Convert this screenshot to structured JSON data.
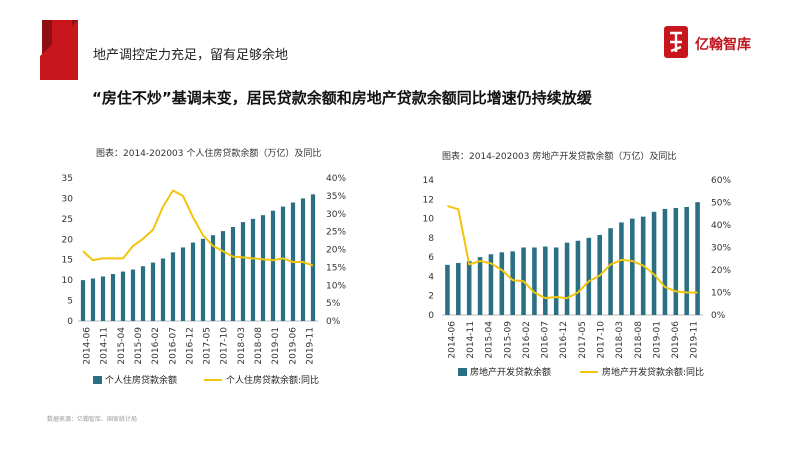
{
  "header": {
    "section_title": "地产调控定力充足，留有足够余地",
    "logo_text": "亿翰智库",
    "brand_color": "#c8161d"
  },
  "headline": "“房住不炒”基调未变，居民贷款余额和房地产贷款余额同比增速仍持续放缓",
  "source": "数据来源：亿翰智库、国家统计局",
  "colors": {
    "bar": "#2a6f84",
    "line": "#f2c40c",
    "axis": "#bbbbbb"
  },
  "chart_data": [
    {
      "type": "bar+line",
      "title": "图表：2014-202003 个人住房贷款余额（万亿）及同比",
      "x_tick_labels": [
        "2014-06",
        "2014-11",
        "2015-04",
        "2015-09",
        "2016-02",
        "2016-07",
        "2016-12",
        "2017-05",
        "2017-10",
        "2018-03",
        "2018-08",
        "2019-01",
        "2019-06",
        "2019-11"
      ],
      "y_left": {
        "ylim": [
          0,
          35
        ],
        "ticks": [
          "0",
          "5",
          "10",
          "15",
          "20",
          "25",
          "30",
          "35"
        ]
      },
      "y_right": {
        "ylim": [
          0,
          40
        ],
        "ticks": [
          "0%",
          "5%",
          "10%",
          "15%",
          "20%",
          "25%",
          "30%",
          "35%",
          "40%"
        ]
      },
      "series": [
        {
          "name": "个人住房贷款余额",
          "kind": "bar",
          "axis": "left",
          "values": [
            10.0,
            10.4,
            10.9,
            11.5,
            12.1,
            12.6,
            13.4,
            14.3,
            15.3,
            16.8,
            18.0,
            19.2,
            20.1,
            21.0,
            22.0,
            23.0,
            24.2,
            25.0,
            25.9,
            27.0,
            28.0,
            29.0,
            30.0,
            31.0
          ]
        },
        {
          "name": "个人住房贷款余额:同比",
          "kind": "line",
          "axis": "right",
          "values": [
            19.5,
            17.0,
            17.5,
            17.5,
            17.5,
            21.0,
            23.0,
            25.5,
            32.0,
            36.5,
            35.0,
            29.0,
            24.0,
            21.0,
            19.5,
            18.0,
            17.8,
            17.5,
            17.3,
            17.0,
            17.5,
            16.5,
            16.5,
            15.5
          ]
        }
      ]
    },
    {
      "type": "bar+line",
      "title": "图表：2014-202003 房地产开发贷款余额（万亿）及同比",
      "x_tick_labels": [
        "2014-06",
        "2014-11",
        "2015-04",
        "2015-09",
        "2016-02",
        "2016-07",
        "2016-12",
        "2017-05",
        "2017-10",
        "2018-03",
        "2018-08",
        "2019-01",
        "2019-06",
        "2019-11"
      ],
      "y_left": {
        "ylim": [
          0,
          14
        ],
        "ticks": [
          "0",
          "2",
          "4",
          "6",
          "8",
          "10",
          "12",
          "14"
        ]
      },
      "y_right": {
        "ylim": [
          0,
          60
        ],
        "ticks": [
          "0%",
          "10%",
          "20%",
          "30%",
          "40%",
          "50%",
          "60%"
        ]
      },
      "series": [
        {
          "name": "房地产开发贷款余额",
          "kind": "bar",
          "axis": "left",
          "values": [
            5.2,
            5.4,
            5.6,
            6.0,
            6.3,
            6.5,
            6.6,
            7.0,
            7.0,
            7.1,
            7.0,
            7.5,
            7.7,
            8.0,
            8.3,
            9.0,
            9.6,
            10.0,
            10.2,
            10.7,
            11.0,
            11.1,
            11.2,
            11.7
          ]
        },
        {
          "name": "房地产开发贷款余额:同比",
          "kind": "line",
          "axis": "right",
          "values": [
            48.5,
            47.0,
            22.5,
            24.0,
            23.0,
            20.0,
            15.5,
            15.0,
            10.0,
            7.5,
            8.0,
            7.5,
            10.0,
            15.0,
            17.5,
            22.5,
            24.5,
            24.0,
            22.0,
            18.0,
            12.5,
            10.5,
            10.0,
            10.0
          ]
        }
      ]
    }
  ]
}
